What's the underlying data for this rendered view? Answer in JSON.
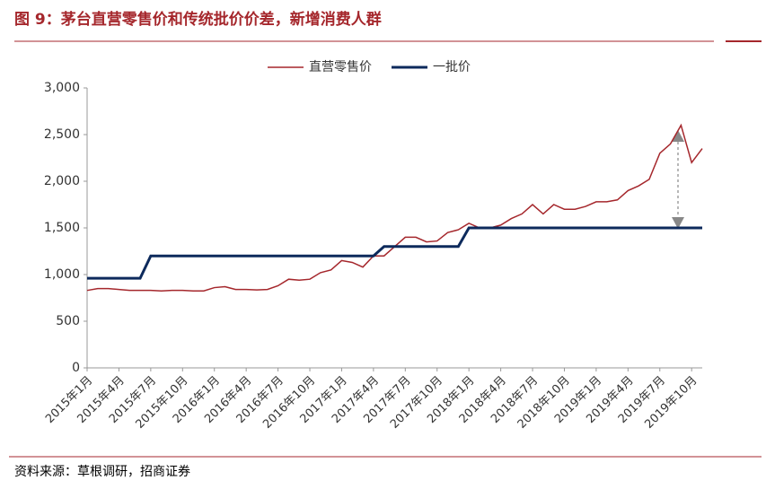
{
  "chart_data": {
    "type": "line",
    "title": "图 9：茅台直营零售价和传统批价价差，新增消费人群",
    "source": "资料来源：草根调研，招商证券",
    "categories": [
      "2015年1月",
      null,
      null,
      "2015年4月",
      null,
      null,
      "2015年7月",
      null,
      null,
      "2015年10月",
      null,
      null,
      "2016年1月",
      null,
      null,
      "2016年4月",
      null,
      null,
      "2016年7月",
      null,
      null,
      "2016年10月",
      null,
      null,
      "2017年1月",
      null,
      null,
      "2017年4月",
      null,
      null,
      "2017年7月",
      null,
      null,
      "2017年10月",
      null,
      null,
      "2018年1月",
      null,
      null,
      "2018年4月",
      null,
      null,
      "2018年7月",
      null,
      null,
      "2018年10月",
      null,
      null,
      "2019年1月",
      null,
      null,
      "2019年4月",
      null,
      null,
      "2019年7月",
      null,
      null,
      "2019年10月",
      null
    ],
    "series": [
      {
        "name": "直营零售价",
        "color": "#a5272c",
        "width": 1.5,
        "values": [
          830,
          850,
          850,
          840,
          830,
          830,
          830,
          825,
          830,
          830,
          825,
          825,
          860,
          870,
          840,
          840,
          835,
          840,
          880,
          950,
          940,
          950,
          1020,
          1050,
          1150,
          1130,
          1080,
          1200,
          1200,
          1300,
          1400,
          1400,
          1350,
          1360,
          1450,
          1480,
          1550,
          1500,
          1500,
          1530,
          1600,
          1650,
          1750,
          1650,
          1750,
          1700,
          1700,
          1730,
          1780,
          1780,
          1800,
          1900,
          1950,
          2020,
          2300,
          2400,
          2600,
          2200,
          2350
        ]
      },
      {
        "name": "一批价",
        "color": "#0d2a5c",
        "width": 3,
        "values": [
          960,
          960,
          960,
          960,
          960,
          960,
          1200,
          1200,
          1200,
          1200,
          1200,
          1200,
          1200,
          1200,
          1200,
          1200,
          1200,
          1200,
          1200,
          1200,
          1200,
          1200,
          1200,
          1200,
          1200,
          1200,
          1200,
          1200,
          1300,
          1300,
          1300,
          1300,
          1300,
          1300,
          1300,
          1300,
          1500,
          1500,
          1500,
          1500,
          1500,
          1500,
          1500,
          1500,
          1500,
          1500,
          1500,
          1500,
          1500,
          1500,
          1500,
          1500,
          1500,
          1500,
          1500,
          1500,
          1500,
          1500,
          1500
        ]
      }
    ],
    "ylim": [
      0,
      3000
    ],
    "yticks": [
      0,
      {
        "value": 500,
        "label": "500"
      },
      {
        "value": 1000,
        "label": "1,000"
      },
      {
        "value": 1500,
        "label": "1,500"
      },
      {
        "value": 2000,
        "label": "2,000"
      },
      {
        "value": 2500,
        "label": "2,500"
      },
      {
        "value": 3000,
        "label": "3,000"
      }
    ],
    "grid": false,
    "legend": "top"
  }
}
